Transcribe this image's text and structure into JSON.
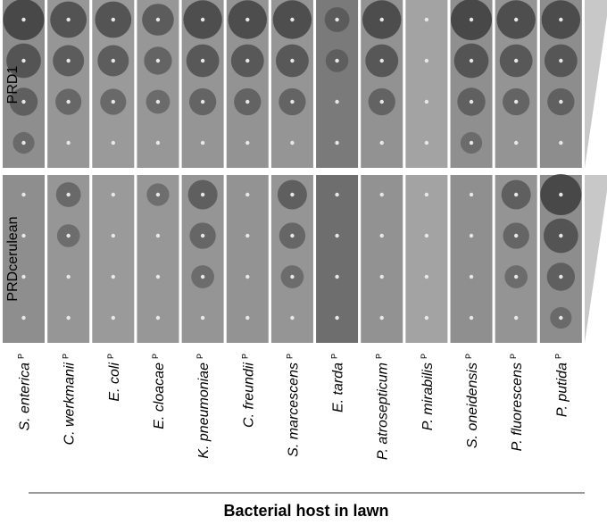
{
  "row_labels": [
    "PRD1",
    "PRDcerulean"
  ],
  "hosts": [
    {
      "name": "S. enterica",
      "marker": "P"
    },
    {
      "name": "C. werkmanii",
      "marker": "P"
    },
    {
      "name": "E. coli",
      "marker": "P"
    },
    {
      "name": "E. cloacae",
      "marker": "P"
    },
    {
      "name": "K. pneumoniae",
      "marker": "P"
    },
    {
      "name": "C. freundii",
      "marker": "P"
    },
    {
      "name": "S. marcescens",
      "marker": "P"
    },
    {
      "name": "E. tarda",
      "marker": "P"
    },
    {
      "name": "P. atrosepticum",
      "marker": "P"
    },
    {
      "name": "P. mirabilis",
      "marker": "P"
    },
    {
      "name": "S. oneidensis",
      "marker": "P"
    },
    {
      "name": "P. fluorescens",
      "marker": "P"
    },
    {
      "name": "P. putida",
      "marker": "P"
    }
  ],
  "axis_label": "Bacterial host in lawn"
}
